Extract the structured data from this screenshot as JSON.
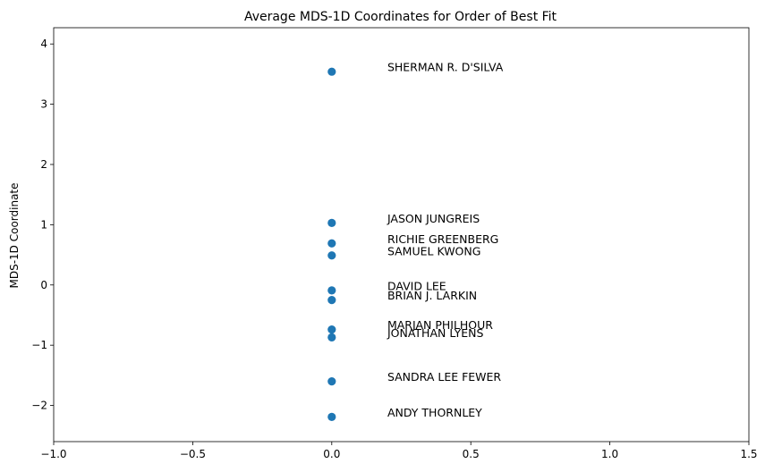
{
  "chart_data": {
    "type": "scatter",
    "title": "Average MDS-1D Coordinates for Order of Best Fit",
    "xlabel": "",
    "ylabel": "MDS-1D Coordinate",
    "xlim": [
      -1.0,
      1.5
    ],
    "ylim": [
      -2.6,
      4.27
    ],
    "x_ticks": [
      -1.0,
      -0.5,
      0.0,
      0.5,
      1.0,
      1.5
    ],
    "x_tick_labels": [
      "−1.0",
      "−0.5",
      "0.0",
      "0.5",
      "1.0",
      "1.5"
    ],
    "y_ticks": [
      -2,
      -1,
      0,
      1,
      2,
      3,
      4
    ],
    "y_tick_labels": [
      "−2",
      "−1",
      "0",
      "1",
      "2",
      "3",
      "4"
    ],
    "grid": false,
    "legend": "none",
    "point_color": "#1f77b4",
    "points": [
      {
        "label": "SHERMAN R. D'SILVA",
        "x": 0.0,
        "y": 3.54
      },
      {
        "label": "JASON JUNGREIS",
        "x": 0.0,
        "y": 1.03
      },
      {
        "label": "RICHIE GREENBERG",
        "x": 0.0,
        "y": 0.69
      },
      {
        "label": "SAMUEL KWONG",
        "x": 0.0,
        "y": 0.49
      },
      {
        "label": "DAVID LEE",
        "x": 0.0,
        "y": -0.09
      },
      {
        "label": "BRIAN J. LARKIN",
        "x": 0.0,
        "y": -0.25
      },
      {
        "label": "MARJAN PHILHOUR",
        "x": 0.0,
        "y": -0.74
      },
      {
        "label": "JONATHAN LYENS",
        "x": 0.0,
        "y": -0.87
      },
      {
        "label": "SANDRA LEE FEWER",
        "x": 0.0,
        "y": -1.6
      },
      {
        "label": "ANDY THORNLEY",
        "x": 0.0,
        "y": -2.19
      }
    ]
  }
}
